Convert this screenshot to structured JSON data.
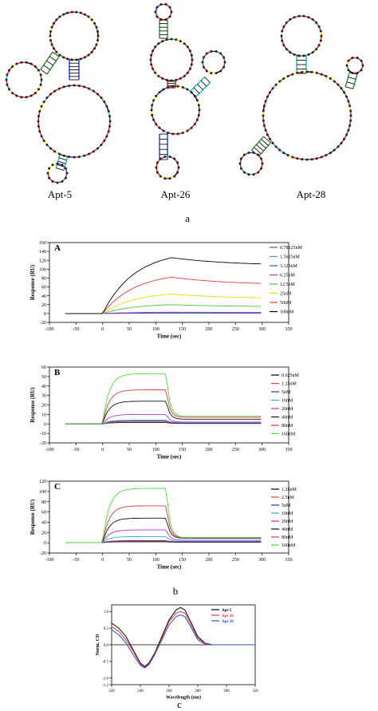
{
  "aptamer_structures": {
    "labels": [
      "Apt-5",
      "Apt-26",
      "Apt-28"
    ],
    "panel_caption": "a",
    "nucleotide_colors": [
      "#d21f1f",
      "#f2e600",
      "#2f8f2f",
      "#1a3ad6",
      "#1ab3c9",
      "#000000"
    ]
  },
  "panel_b_caption": "b",
  "panel_c_caption": "c",
  "chart_data": [
    {
      "type": "line",
      "panel_label": "A",
      "title": "",
      "xlabel": "Time (sec)",
      "ylabel": "Response (RU)",
      "xlim": [
        -100,
        350
      ],
      "ylim": [
        -20,
        160
      ],
      "xticks": [
        -100,
        -50,
        0,
        50,
        100,
        150,
        200,
        250,
        300,
        350
      ],
      "yticks": [
        -20,
        0,
        20,
        40,
        60,
        80,
        100,
        120,
        140,
        160
      ],
      "injection_end": 130,
      "dissociation_end": 300,
      "legend_position": "right",
      "series": [
        {
          "name": "0.78125nM",
          "color": "#7a4a9a",
          "peak": 0.5,
          "final": 0.5
        },
        {
          "name": "1.5625nM",
          "color": "#27b0b8",
          "peak": 1,
          "final": 0.8
        },
        {
          "name": "3.125nM",
          "color": "#2e57c9",
          "peak": 1.5,
          "final": 1.2
        },
        {
          "name": "6.25nM",
          "color": "#b52fd1",
          "peak": 3,
          "final": 2.5
        },
        {
          "name": "12.5nM",
          "color": "#46c83a",
          "peak": 20,
          "final": 15
        },
        {
          "name": "25nM",
          "color": "#e6dd00",
          "peak": 44,
          "final": 33
        },
        {
          "name": "50nM",
          "color": "#e23a3a",
          "peak": 82,
          "final": 64
        },
        {
          "name": "100nM",
          "color": "#000000",
          "peak": 126,
          "final": 108
        }
      ]
    },
    {
      "type": "line",
      "panel_label": "B",
      "title": "",
      "xlabel": "Time (sec)",
      "ylabel": "Response (RU)",
      "xlim": [
        -100,
        350
      ],
      "ylim": [
        -20,
        60
      ],
      "xticks": [
        -100,
        -50,
        0,
        50,
        100,
        150,
        200,
        250,
        300,
        350
      ],
      "yticks": [
        -20,
        -10,
        0,
        10,
        20,
        30,
        40,
        50,
        60
      ],
      "legend_position": "right",
      "series": [
        {
          "name": "0.625nM",
          "color": "#000000",
          "peak": 1.5,
          "final": 0.5
        },
        {
          "name": "1.25nM",
          "color": "#e6462d",
          "peak": 2,
          "final": 0.8
        },
        {
          "name": "5nM",
          "color": "#3a2a9a",
          "peak": 3,
          "final": 1
        },
        {
          "name": "10nM",
          "color": "#30b0c8",
          "peak": 4,
          "final": 1.5
        },
        {
          "name": "20nM",
          "color": "#c030d0",
          "peak": 10,
          "final": 2
        },
        {
          "name": "40nM",
          "color": "#111111",
          "peak": 24,
          "final": 5
        },
        {
          "name": "80nM",
          "color": "#e23a3a",
          "peak": 36,
          "final": 7
        },
        {
          "name": "160nM",
          "color": "#4ae03a",
          "peak": 53,
          "final": 8
        }
      ]
    },
    {
      "type": "line",
      "panel_label": "C",
      "title": "",
      "xlabel": "Time (sec)",
      "ylabel": "Response (RU)",
      "xlim": [
        -100,
        350
      ],
      "ylim": [
        -20,
        120
      ],
      "xticks": [
        -100,
        -50,
        0,
        50,
        100,
        150,
        200,
        250,
        300,
        350
      ],
      "yticks": [
        -20,
        0,
        20,
        40,
        60,
        80,
        100,
        120
      ],
      "legend_position": "right",
      "series": [
        {
          "name": "1.25nM",
          "color": "#000000",
          "peak": 2,
          "final": 1
        },
        {
          "name": "2.5nM",
          "color": "#e6462d",
          "peak": 3,
          "final": 1.5
        },
        {
          "name": "5nM",
          "color": "#3a2a9a",
          "peak": 4,
          "final": 2
        },
        {
          "name": "10nM",
          "color": "#30b0c8",
          "peak": 12,
          "final": 3
        },
        {
          "name": "20nM",
          "color": "#c030d0",
          "peak": 25,
          "final": 5
        },
        {
          "name": "40nM",
          "color": "#111111",
          "peak": 48,
          "final": 9
        },
        {
          "name": "80nM",
          "color": "#e23a3a",
          "peak": 72,
          "final": 10
        },
        {
          "name": "160nM",
          "color": "#4ae03a",
          "peak": 106,
          "final": 10
        }
      ]
    },
    {
      "type": "line",
      "panel_label": "",
      "title": "",
      "xlabel": "Wavelength (nm)",
      "ylabel": "Norm. CD",
      "xlim": [
        220,
        320
      ],
      "ylim": [
        -1.2,
        1.2
      ],
      "xticks": [
        220,
        240,
        260,
        280,
        300,
        320
      ],
      "yticks": [
        -1.2,
        -1.0,
        -0.5,
        0.0,
        0.5,
        1.0
      ],
      "legend_position": "top-right",
      "series": [
        {
          "name": "Apt-5",
          "color": "#000000",
          "x": [
            220,
            225,
            230,
            235,
            240,
            243,
            246,
            250,
            255,
            260,
            265,
            268,
            271,
            275,
            280,
            285,
            290,
            300,
            320
          ],
          "y": [
            0.65,
            0.5,
            0.25,
            -0.15,
            -0.55,
            -0.65,
            -0.55,
            -0.25,
            0.25,
            0.75,
            1.05,
            1.12,
            1.05,
            0.7,
            0.25,
            0.05,
            0.0,
            0.0,
            0.0
          ]
        },
        {
          "name": "Apt-26",
          "color": "#e23a3a",
          "x": [
            220,
            225,
            230,
            235,
            240,
            243,
            246,
            250,
            255,
            260,
            265,
            268,
            271,
            275,
            280,
            285,
            290,
            300,
            320
          ],
          "y": [
            0.55,
            0.4,
            0.15,
            -0.2,
            -0.58,
            -0.68,
            -0.58,
            -0.28,
            0.2,
            0.7,
            0.95,
            1.0,
            0.95,
            0.62,
            0.2,
            0.04,
            0.0,
            0.0,
            0.0
          ]
        },
        {
          "name": "Apt-28",
          "color": "#2f4fd6",
          "x": [
            220,
            225,
            230,
            235,
            240,
            243,
            246,
            250,
            255,
            260,
            265,
            268,
            271,
            275,
            280,
            285,
            290,
            300,
            320
          ],
          "y": [
            0.45,
            0.3,
            0.05,
            -0.3,
            -0.62,
            -0.7,
            -0.6,
            -0.3,
            0.15,
            0.6,
            0.85,
            0.9,
            0.85,
            0.55,
            0.15,
            0.02,
            0.0,
            0.0,
            0.0
          ]
        }
      ]
    }
  ]
}
